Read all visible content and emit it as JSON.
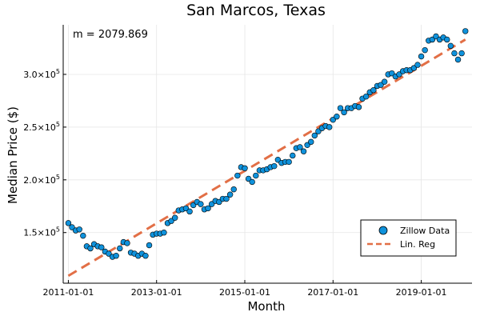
{
  "chart_data": {
    "type": "scatter",
    "title": "San Marcos, Texas",
    "xlabel": "Month",
    "ylabel": "Median Price ($)",
    "annotation": "m = 2079.869",
    "x_ticks": [
      "2011-01-01",
      "2013-01-01",
      "2015-01-01",
      "2017-01-01",
      "2019-01-01"
    ],
    "y_ticks": [
      {
        "mantissa": "1.5",
        "exp": "5"
      },
      {
        "mantissa": "2.0",
        "exp": "5"
      },
      {
        "mantissa": "2.5",
        "exp": "5"
      },
      {
        "mantissa": "3.0",
        "exp": "5"
      }
    ],
    "y_tick_values": [
      150000,
      200000,
      250000,
      300000
    ],
    "x_tick_index": [
      0,
      24,
      48,
      72,
      96
    ],
    "xlim": [
      -1.4,
      109.8
    ],
    "ylim": [
      102000,
      347000
    ],
    "grid": true,
    "legend_position": "bottom-right",
    "series": [
      {
        "name": "Zillow Data",
        "kind": "scatter",
        "color": "#0f92dc",
        "x": [
          0,
          1,
          2,
          3,
          4,
          5,
          6,
          7,
          8,
          9,
          10,
          11,
          12,
          13,
          14,
          15,
          16,
          17,
          18,
          19,
          20,
          21,
          22,
          23,
          24,
          25,
          26,
          27,
          28,
          29,
          30,
          31,
          32,
          33,
          34,
          35,
          36,
          37,
          38,
          39,
          40,
          41,
          42,
          43,
          44,
          45,
          46,
          47,
          48,
          49,
          50,
          51,
          52,
          53,
          54,
          55,
          56,
          57,
          58,
          59,
          60,
          61,
          62,
          63,
          64,
          65,
          66,
          67,
          68,
          69,
          70,
          71,
          72,
          73,
          74,
          75,
          76,
          77,
          78,
          79,
          80,
          81,
          82,
          83,
          84,
          85,
          86,
          87,
          88,
          89,
          90,
          91,
          92,
          93,
          94,
          95,
          96,
          97,
          98,
          99,
          100,
          101,
          102,
          103,
          104,
          105,
          106,
          107
        ],
        "y": [
          159000,
          155000,
          152000,
          153000,
          147000,
          137000,
          135000,
          139000,
          137000,
          136000,
          132000,
          130000,
          127000,
          128000,
          135000,
          141000,
          140000,
          131000,
          130000,
          128000,
          130000,
          128000,
          138000,
          148000,
          149000,
          149000,
          150000,
          159000,
          161000,
          164000,
          171000,
          172000,
          173000,
          170000,
          176000,
          179000,
          177000,
          172000,
          173000,
          177000,
          180000,
          179000,
          182000,
          182000,
          186000,
          191000,
          204000,
          212000,
          211000,
          201000,
          198000,
          204000,
          209000,
          209000,
          210000,
          212000,
          213000,
          219000,
          216000,
          217000,
          217000,
          223000,
          230000,
          231000,
          227000,
          233000,
          236000,
          242000,
          246000,
          249000,
          251000,
          250000,
          257000,
          260000,
          268000,
          264000,
          268000,
          268000,
          270000,
          269000,
          277000,
          279000,
          283000,
          285000,
          289000,
          290000,
          293000,
          300000,
          301000,
          298000,
          300000,
          303000,
          304000,
          304000,
          306000,
          309000,
          317000,
          323000,
          332000,
          333000,
          336000,
          333000,
          335000,
          333000,
          327000,
          320000,
          314000,
          320000
        ],
        "note": "final point at x=108",
        "x_extra": [
          108
        ],
        "y_extra": [
          341000
        ]
      },
      {
        "name": "Lin. Reg",
        "kind": "line",
        "color": "#e26f46",
        "dash": true,
        "x": [
          0,
          108
        ],
        "y": [
          109000,
          333000
        ]
      }
    ]
  }
}
